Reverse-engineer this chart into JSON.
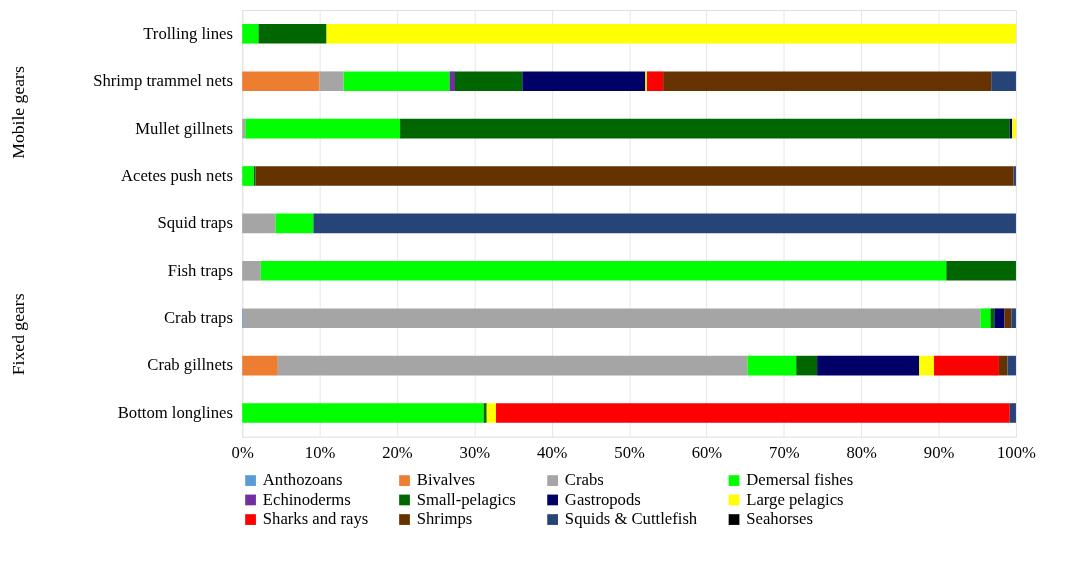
{
  "chart_data": {
    "type": "bar",
    "orientation": "horizontal",
    "stacked": true,
    "categories": [
      "Trolling lines",
      "Shrimp trammel nets",
      "Mullet gillnets",
      "Acetes push nets",
      "Squid traps",
      "Fish traps",
      "Crab traps",
      "Crab gillnets",
      "Bottom longlines"
    ],
    "series": [
      {
        "name": "Anthozoans",
        "color": "#5b9bd5",
        "values": [
          null,
          null,
          null,
          null,
          null,
          null,
          0.1,
          null,
          null
        ]
      },
      {
        "name": "Bivalves",
        "color": "#ed7d31",
        "values": [
          null,
          10.0,
          null,
          null,
          null,
          null,
          null,
          4.6,
          null
        ]
      },
      {
        "name": "Crabs",
        "color": "#a5a5a5",
        "values": [
          null,
          3.1,
          0.4,
          null,
          4.3,
          2.4,
          95.3,
          60.7,
          null
        ]
      },
      {
        "name": "Demersal fishes",
        "color": "#00ff00",
        "values": [
          2.1,
          13.7,
          20.0,
          1.5,
          4.9,
          88.6,
          1.3,
          6.3,
          31.2
        ]
      },
      {
        "name": "Echinoderms",
        "color": "#7030a0",
        "values": [
          null,
          0.7,
          null,
          null,
          null,
          null,
          null,
          null,
          null
        ]
      },
      {
        "name": "Small-pelagics",
        "color": "#006600",
        "values": [
          8.8,
          8.7,
          78.8,
          0.2,
          null,
          9.0,
          0.5,
          2.7,
          0.4
        ]
      },
      {
        "name": "Gastropods",
        "color": "#000066",
        "values": [
          null,
          15.9,
          0.3,
          null,
          null,
          null,
          1.3,
          13.2,
          null
        ]
      },
      {
        "name": "Large pelagics",
        "color": "#ffff00",
        "values": [
          89.1,
          0.2,
          0.5,
          null,
          null,
          null,
          null,
          1.9,
          1.2
        ]
      },
      {
        "name": "Sharks and rays",
        "color": "#ff0000",
        "values": [
          null,
          2.1,
          null,
          null,
          null,
          null,
          null,
          8.4,
          66.4
        ]
      },
      {
        "name": "Shrimps",
        "color": "#663300",
        "values": [
          null,
          42.4,
          null,
          98.0,
          null,
          null,
          0.9,
          1.1,
          null
        ]
      },
      {
        "name": "Squids & Cuttlefish",
        "color": "#264478",
        "values": [
          null,
          3.2,
          null,
          0.3,
          90.8,
          null,
          0.6,
          1.1,
          0.8
        ]
      },
      {
        "name": "Seahorses",
        "color": "#000000",
        "values": [
          null,
          null,
          null,
          null,
          null,
          null,
          null,
          null,
          null
        ]
      }
    ],
    "xlim": [
      0,
      100
    ],
    "xticks": [
      {
        "value": 0,
        "label": "0%"
      },
      {
        "value": 10,
        "label": "10%"
      },
      {
        "value": 20,
        "label": "20%"
      },
      {
        "value": 30,
        "label": "30%"
      },
      {
        "value": 40,
        "label": "40%"
      },
      {
        "value": 50,
        "label": "50%"
      },
      {
        "value": 60,
        "label": "60%"
      },
      {
        "value": 70,
        "label": "70%"
      },
      {
        "value": 80,
        "label": "80%"
      },
      {
        "value": 90,
        "label": "90%"
      },
      {
        "value": 100,
        "label": "100%"
      }
    ],
    "grid": "x",
    "legend": "bottom",
    "annotations": [
      "Mobile gears",
      "Fixed gears"
    ]
  }
}
